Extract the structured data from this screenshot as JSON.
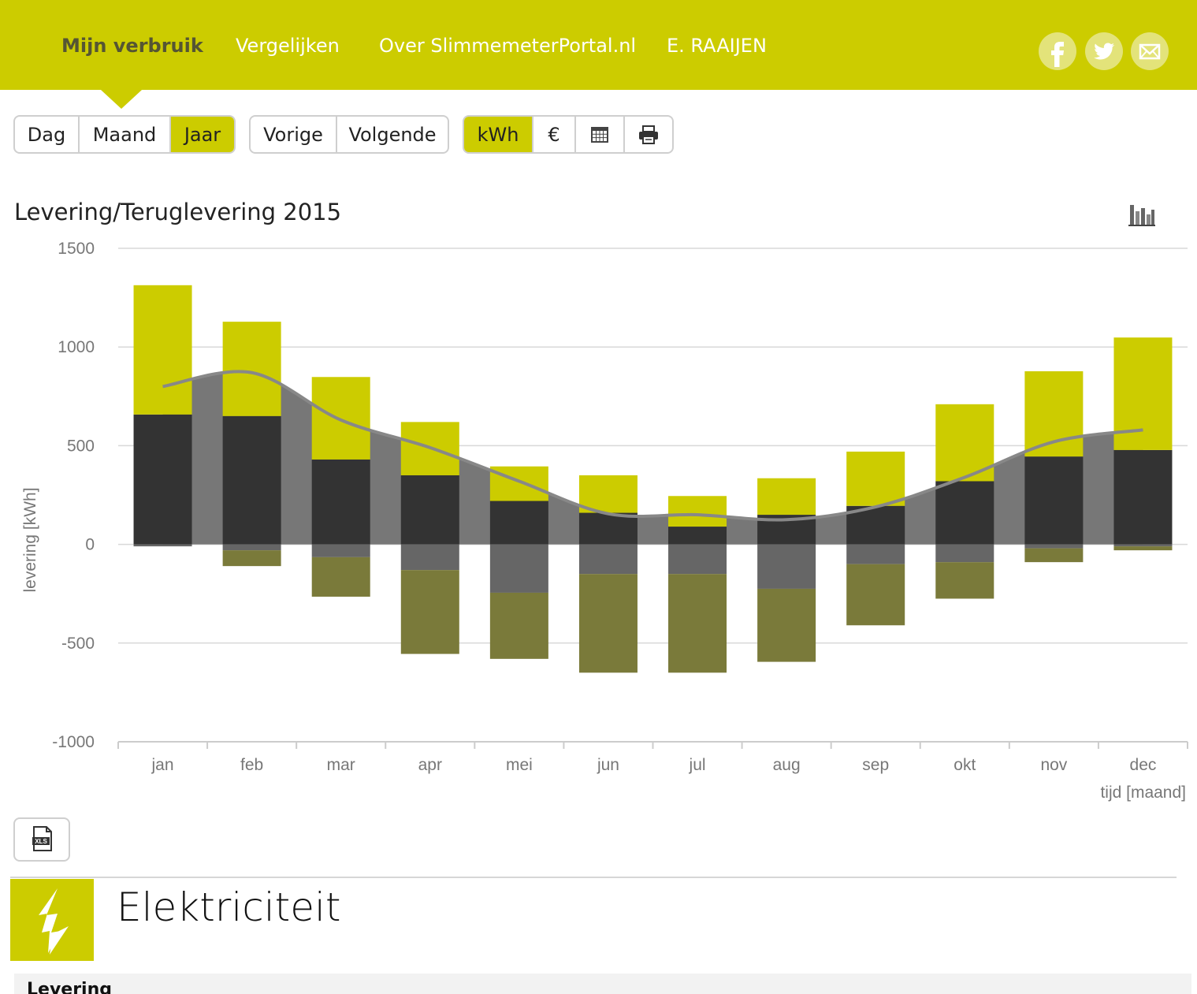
{
  "nav": {
    "items": [
      {
        "label": "Mijn verbruik",
        "active": true
      },
      {
        "label": "Vergelijken",
        "active": false
      },
      {
        "label": "Over SlimmemeterPortal.nl",
        "active": false
      },
      {
        "label": "E. RAAIJEN",
        "active": false
      }
    ],
    "social_icons": [
      "facebook-icon",
      "twitter-icon",
      "mail-icon"
    ]
  },
  "toolbar": {
    "period": [
      {
        "label": "Dag",
        "active": false
      },
      {
        "label": "Maand",
        "active": false
      },
      {
        "label": "Jaar",
        "active": true
      }
    ],
    "navigation": [
      {
        "label": "Vorige"
      },
      {
        "label": "Volgende"
      }
    ],
    "unit": [
      {
        "label": "kWh",
        "active": true
      },
      {
        "label": "€",
        "active": false
      }
    ],
    "icons": [
      "calendar-icon",
      "print-icon"
    ]
  },
  "colors": {
    "brand": "#cccc00",
    "levering_dal": "#333333",
    "levering_piek": "#cccc00",
    "teruglevering_dal": "#666666",
    "teruglevering_piek": "#7a7a3a",
    "area": "#777777",
    "line": "#888888"
  },
  "chart_data": {
    "type": "bar",
    "title": "Levering/Teruglevering 2015",
    "ylabel": "levering [kWh]",
    "xlabel": "tijd [maand]",
    "ylim": [
      -1000,
      1500
    ],
    "yticks": [
      1500,
      1000,
      500,
      0,
      -500,
      -1000
    ],
    "grid": true,
    "categories": [
      "jan",
      "feb",
      "mar",
      "apr",
      "mei",
      "jun",
      "jul",
      "aug",
      "sep",
      "okt",
      "nov",
      "dec"
    ],
    "series": [
      {
        "values": [
          658,
          650,
          430,
          350,
          220,
          160,
          90,
          150,
          195,
          320,
          445,
          478
        ]
      },
      {
        "values": [
          655,
          478,
          418,
          270,
          175,
          190,
          155,
          185,
          275,
          390,
          432,
          570
        ]
      },
      {
        "values": [
          -10,
          -30,
          -65,
          -130,
          -245,
          -150,
          -150,
          -225,
          -100,
          -90,
          -20,
          -10
        ]
      },
      {
        "values": [
          0,
          -80,
          -200,
          -425,
          -335,
          -500,
          -500,
          -370,
          -310,
          -185,
          -70,
          -20
        ]
      },
      {
        "values": [
          800,
          870,
          630,
          490,
          320,
          155,
          150,
          125,
          190,
          340,
          520,
          580
        ]
      }
    ]
  },
  "export": {
    "icon": "xls-icon",
    "label": "XLS"
  },
  "section": {
    "title": "Elektriciteit",
    "icon": "lightning-icon",
    "subheading": "Levering"
  }
}
